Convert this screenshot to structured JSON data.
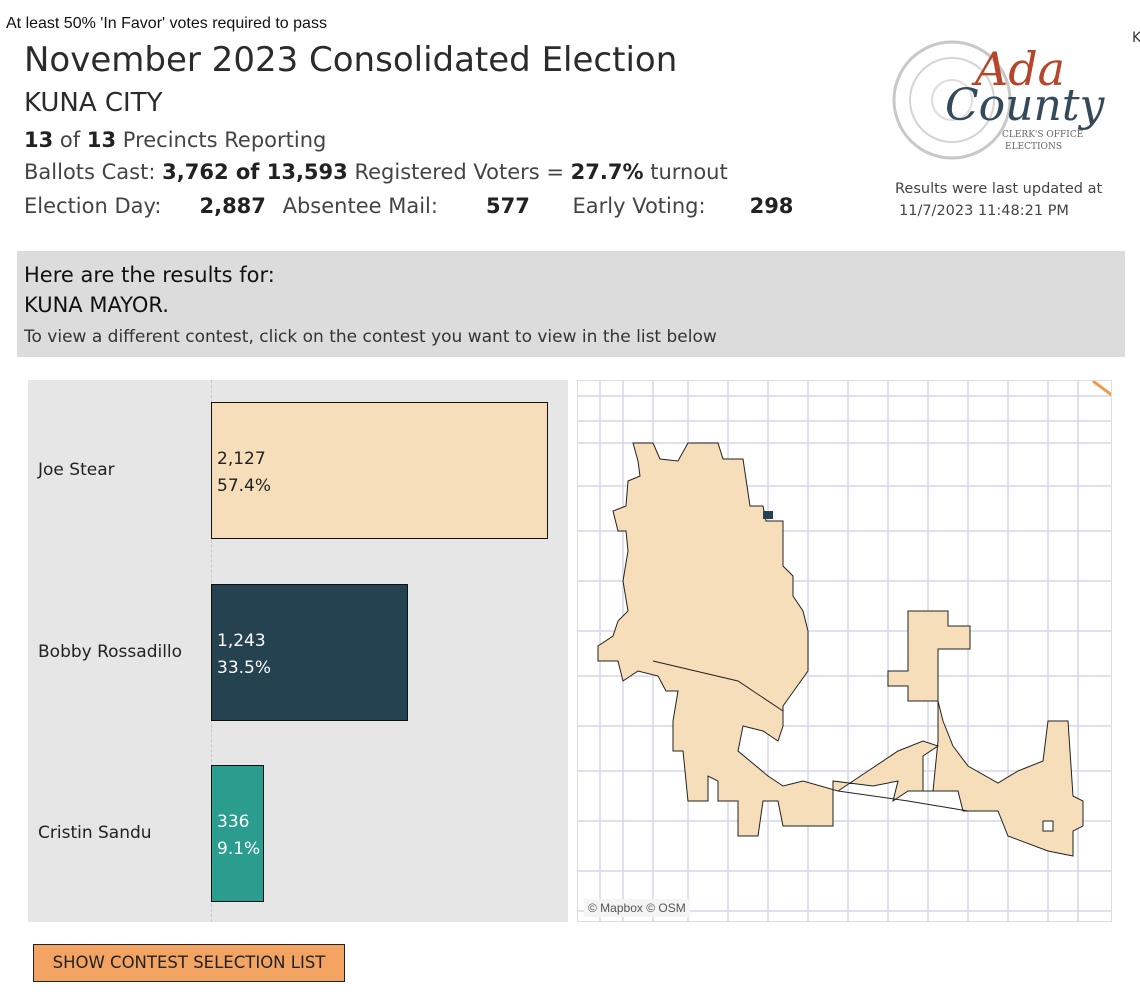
{
  "note": "At least 50% 'In Favor' votes required to pass",
  "header": {
    "title": "November 2023 Consolidated Election",
    "jurisdiction": "KUNA CITY",
    "precincts_reported": "13",
    "precincts_of": "of",
    "precincts_total": "13",
    "precincts_label": "Precincts Reporting",
    "ballots_label": "Ballots Cast:",
    "ballots_value": "3,762 of 13,593",
    "registered_label": "Registered Voters =",
    "turnout_value": "27.7%",
    "turnout_label": "turnout",
    "election_day_label": "Election Day:",
    "election_day_value": "2,887",
    "absentee_label": "Absentee Mail:",
    "absentee_value": "577",
    "early_label": "Early Voting:",
    "early_value": "298"
  },
  "logo": {
    "text": "Ada County Clerk's Office Elections"
  },
  "updated": {
    "label": "Results were last updated at",
    "timestamp": "11/7/2023 11:48:21 PM"
  },
  "edge_text": "K",
  "banner": {
    "heading": "Here are the results for:",
    "contest": "KUNA MAYOR.",
    "instruction": "To view a different contest, click on the contest you want to view in the list below"
  },
  "colors": {
    "joe": "#f5deb9",
    "bobby": "#24424f",
    "cristin": "#2a9d8f",
    "button": "#f3a463",
    "banner": "#dcdcdc"
  },
  "chart_data": {
    "type": "bar",
    "orientation": "horizontal",
    "categories": [
      "Joe Stear",
      "Bobby Rossadillo",
      "Cristin Sandu"
    ],
    "values": [
      2127,
      1243,
      336
    ],
    "value_labels": [
      "2,127",
      "1,243",
      "336"
    ],
    "percent_labels": [
      "57.4%",
      "33.5%",
      "9.1%"
    ]
  },
  "map": {
    "attribution": "© Mapbox © OSM"
  },
  "button": {
    "label": "SHOW CONTEST SELECTION LIST"
  }
}
